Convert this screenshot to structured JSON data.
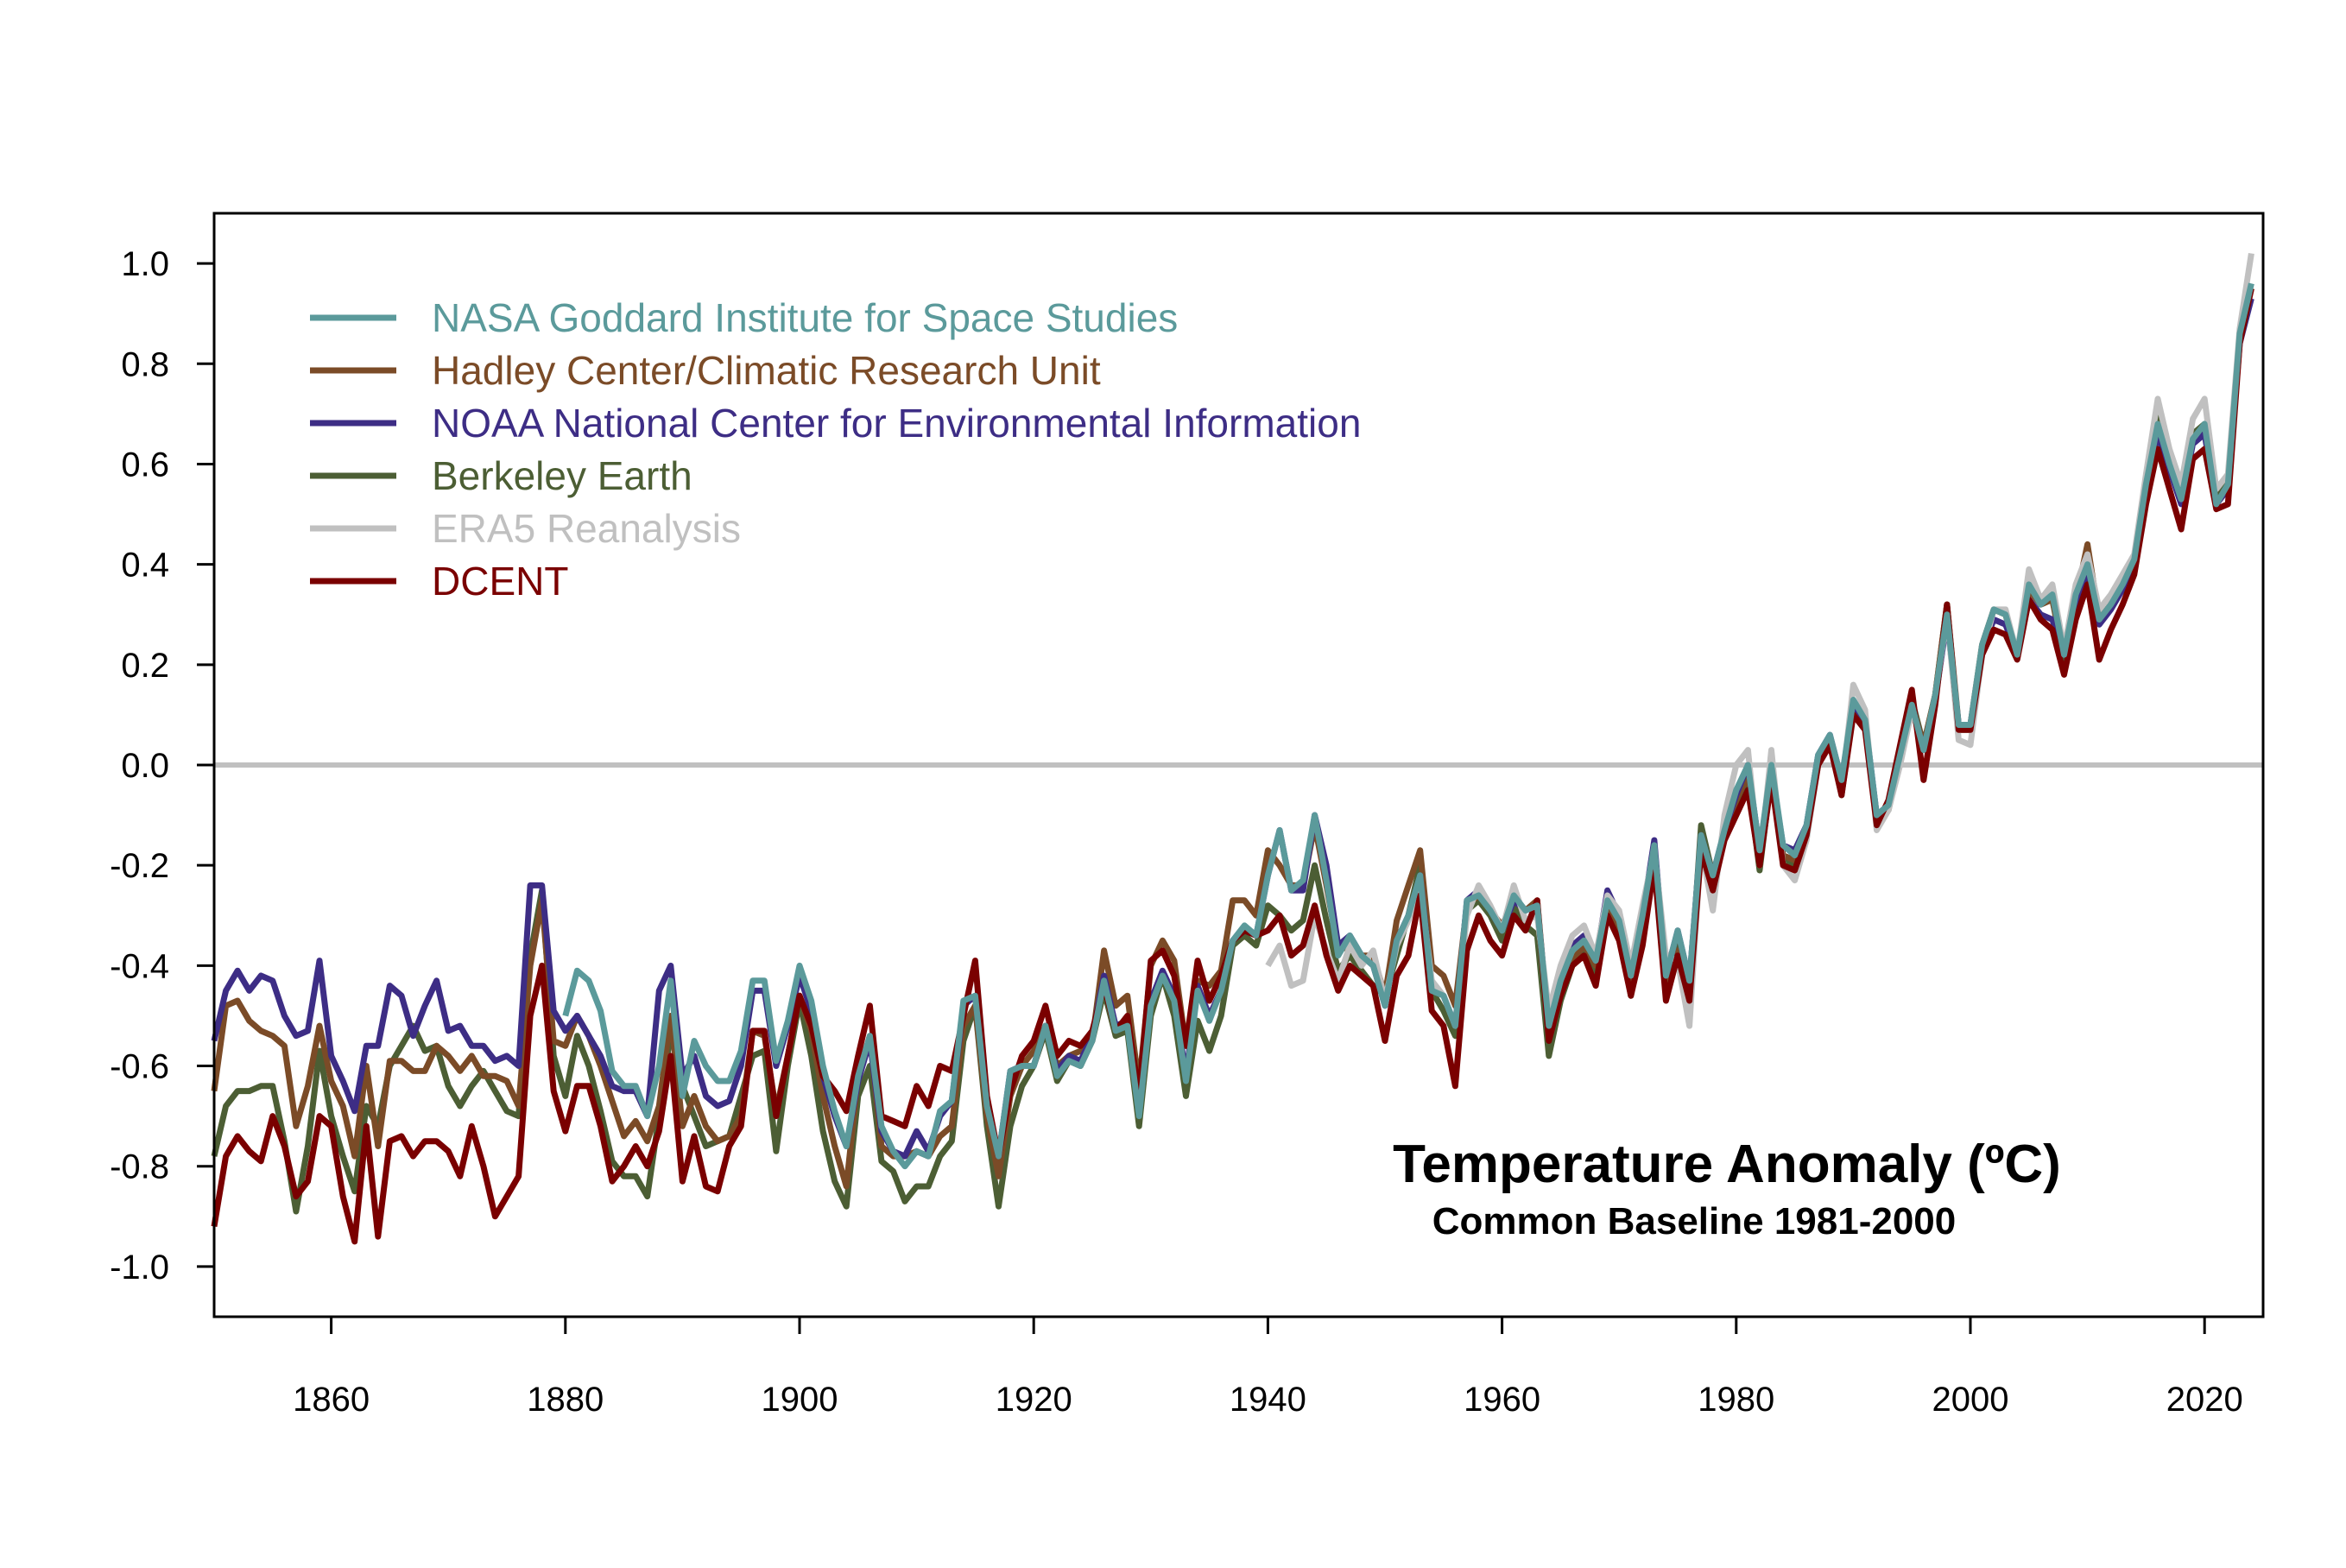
{
  "chart_data": {
    "type": "line",
    "title": "Temperature Anomaly (ºC)",
    "subtitle": "Common Baseline 1981-2000",
    "xlabel": "",
    "ylabel": "",
    "xlim": [
      1850,
      2025
    ],
    "ylim": [
      -1.1,
      1.1
    ],
    "x_ticks": [
      1860,
      1880,
      1900,
      1920,
      1940,
      1960,
      1980,
      2000,
      2020
    ],
    "y_ticks": [
      1.0,
      0.8,
      0.6,
      0.4,
      0.2,
      0.0,
      -0.2,
      -0.4,
      -0.6,
      -0.8,
      -1.0
    ],
    "y_tick_labels": [
      "1.0",
      "0.8",
      "0.6",
      "0.4",
      "0.2",
      "0.0",
      "-0.2",
      "-0.4",
      "-0.6",
      "-0.8",
      "-1.0"
    ],
    "grid": false,
    "reference_line": {
      "y": 0.0,
      "color": "#c0c0c0"
    },
    "legend_placement": "top-left",
    "series": [
      {
        "name": "NASA Goddard Institute for Space Studies",
        "color": "#5b9a9b",
        "start_year": 1880,
        "values": [
          -0.5,
          -0.41,
          -0.43,
          -0.49,
          -0.61,
          -0.64,
          -0.64,
          -0.7,
          -0.6,
          -0.43,
          -0.66,
          -0.55,
          -0.6,
          -0.63,
          -0.63,
          -0.57,
          -0.43,
          -0.43,
          -0.59,
          -0.51,
          -0.4,
          -0.47,
          -0.6,
          -0.69,
          -0.76,
          -0.62,
          -0.54,
          -0.72,
          -0.77,
          -0.8,
          -0.77,
          -0.78,
          -0.69,
          -0.67,
          -0.47,
          -0.46,
          -0.68,
          -0.78,
          -0.61,
          -0.6,
          -0.6,
          -0.52,
          -0.62,
          -0.59,
          -0.6,
          -0.55,
          -0.43,
          -0.53,
          -0.52,
          -0.7,
          -0.48,
          -0.42,
          -0.47,
          -0.63,
          -0.45,
          -0.51,
          -0.45,
          -0.35,
          -0.32,
          -0.34,
          -0.22,
          -0.13,
          -0.25,
          -0.23,
          -0.1,
          -0.23,
          -0.38,
          -0.34,
          -0.38,
          -0.4,
          -0.48,
          -0.35,
          -0.3,
          -0.22,
          -0.45,
          -0.46,
          -0.52,
          -0.27,
          -0.26,
          -0.29,
          -0.33,
          -0.26,
          -0.29,
          -0.28,
          -0.52,
          -0.43,
          -0.37,
          -0.35,
          -0.39,
          -0.27,
          -0.31,
          -0.42,
          -0.3,
          -0.16,
          -0.42,
          -0.33,
          -0.43,
          -0.14,
          -0.22,
          -0.13,
          -0.05,
          0.0,
          -0.17,
          0.0,
          -0.16,
          -0.18,
          -0.12,
          0.02,
          0.06,
          -0.03,
          0.13,
          0.09,
          -0.1,
          -0.08,
          0.02,
          0.12,
          0.03,
          0.14,
          0.3,
          0.08,
          0.08,
          0.24,
          0.31,
          0.3,
          0.22,
          0.36,
          0.32,
          0.34,
          0.22,
          0.34,
          0.4,
          0.29,
          0.32,
          0.36,
          0.41,
          0.56,
          0.68,
          0.6,
          0.53,
          0.65,
          0.68,
          0.52,
          0.56,
          0.86,
          0.96
        ]
      },
      {
        "name": "Hadley Center/Climatic Research Unit",
        "color": "#7b4b27",
        "start_year": 1850,
        "values": [
          -0.65,
          -0.48,
          -0.47,
          -0.51,
          -0.53,
          -0.54,
          -0.56,
          -0.72,
          -0.64,
          -0.52,
          -0.63,
          -0.68,
          -0.78,
          -0.6,
          -0.76,
          -0.59,
          -0.59,
          -0.61,
          -0.61,
          -0.56,
          -0.58,
          -0.61,
          -0.58,
          -0.62,
          -0.62,
          -0.63,
          -0.68,
          -0.4,
          -0.27,
          -0.55,
          -0.56,
          -0.5,
          -0.54,
          -0.6,
          -0.67,
          -0.74,
          -0.71,
          -0.75,
          -0.68,
          -0.5,
          -0.72,
          -0.66,
          -0.72,
          -0.75,
          -0.74,
          -0.7,
          -0.53,
          -0.54,
          -0.69,
          -0.58,
          -0.46,
          -0.53,
          -0.66,
          -0.76,
          -0.84,
          -0.62,
          -0.54,
          -0.76,
          -0.78,
          -0.78,
          -0.77,
          -0.78,
          -0.74,
          -0.72,
          -0.52,
          -0.48,
          -0.7,
          -0.82,
          -0.66,
          -0.6,
          -0.57,
          -0.52,
          -0.6,
          -0.58,
          -0.57,
          -0.55,
          -0.37,
          -0.48,
          -0.46,
          -0.64,
          -0.4,
          -0.35,
          -0.39,
          -0.56,
          -0.43,
          -0.44,
          -0.41,
          -0.27,
          -0.27,
          -0.3,
          -0.17,
          -0.2,
          -0.24,
          -0.24,
          -0.12,
          -0.24,
          -0.37,
          -0.36,
          -0.38,
          -0.38,
          -0.46,
          -0.31,
          -0.24,
          -0.17,
          -0.4,
          -0.42,
          -0.48,
          -0.28,
          -0.26,
          -0.29,
          -0.32,
          -0.27,
          -0.29,
          -0.27,
          -0.53,
          -0.44,
          -0.39,
          -0.36,
          -0.4,
          -0.29,
          -0.32,
          -0.44,
          -0.33,
          -0.18,
          -0.43,
          -0.37,
          -0.45,
          -0.14,
          -0.23,
          -0.14,
          -0.07,
          -0.02,
          -0.18,
          0.0,
          -0.18,
          -0.19,
          -0.13,
          0.01,
          0.05,
          -0.04,
          0.12,
          0.08,
          -0.11,
          -0.08,
          0.02,
          0.12,
          0.04,
          0.14,
          0.32,
          0.08,
          0.08,
          0.24,
          0.31,
          0.3,
          0.22,
          0.35,
          0.32,
          0.33,
          0.22,
          0.33,
          0.44,
          0.29,
          0.32,
          0.35,
          0.41,
          0.56,
          0.68,
          0.6,
          0.53,
          0.65,
          0.67,
          0.52,
          0.55,
          0.86,
          0.95
        ]
      },
      {
        "name": "NOAA National Center for Environmental Information",
        "color": "#3d2d85",
        "start_year": 1850,
        "values": [
          -0.55,
          -0.45,
          -0.41,
          -0.45,
          -0.42,
          -0.43,
          -0.5,
          -0.54,
          -0.53,
          -0.39,
          -0.58,
          -0.63,
          -0.69,
          -0.56,
          -0.56,
          -0.44,
          -0.46,
          -0.54,
          -0.48,
          -0.43,
          -0.53,
          -0.52,
          -0.56,
          -0.56,
          -0.59,
          -0.58,
          -0.6,
          -0.24,
          -0.24,
          -0.49,
          -0.53,
          -0.5,
          -0.54,
          -0.58,
          -0.64,
          -0.65,
          -0.65,
          -0.7,
          -0.45,
          -0.4,
          -0.62,
          -0.58,
          -0.66,
          -0.68,
          -0.67,
          -0.6,
          -0.45,
          -0.45,
          -0.6,
          -0.52,
          -0.42,
          -0.49,
          -0.62,
          -0.7,
          -0.76,
          -0.63,
          -0.55,
          -0.73,
          -0.77,
          -0.78,
          -0.73,
          -0.77,
          -0.7,
          -0.67,
          -0.48,
          -0.46,
          -0.67,
          -0.78,
          -0.61,
          -0.6,
          -0.6,
          -0.52,
          -0.61,
          -0.58,
          -0.59,
          -0.54,
          -0.42,
          -0.52,
          -0.51,
          -0.69,
          -0.47,
          -0.41,
          -0.46,
          -0.62,
          -0.44,
          -0.5,
          -0.45,
          -0.35,
          -0.33,
          -0.34,
          -0.22,
          -0.13,
          -0.25,
          -0.25,
          -0.1,
          -0.2,
          -0.36,
          -0.34,
          -0.38,
          -0.4,
          -0.48,
          -0.35,
          -0.3,
          -0.22,
          -0.44,
          -0.46,
          -0.52,
          -0.27,
          -0.25,
          -0.29,
          -0.33,
          -0.27,
          -0.29,
          -0.28,
          -0.52,
          -0.43,
          -0.36,
          -0.34,
          -0.39,
          -0.25,
          -0.3,
          -0.42,
          -0.3,
          -0.15,
          -0.42,
          -0.33,
          -0.43,
          -0.14,
          -0.22,
          -0.13,
          -0.06,
          0.0,
          -0.17,
          -0.01,
          -0.16,
          -0.17,
          -0.12,
          0.02,
          0.06,
          -0.03,
          0.12,
          0.09,
          -0.1,
          -0.08,
          0.02,
          0.12,
          0.03,
          0.13,
          0.29,
          0.08,
          0.08,
          0.23,
          0.29,
          0.28,
          0.22,
          0.33,
          0.3,
          0.29,
          0.22,
          0.32,
          0.38,
          0.28,
          0.31,
          0.35,
          0.4,
          0.55,
          0.66,
          0.59,
          0.52,
          0.64,
          0.66,
          0.52,
          0.55,
          0.84,
          0.93
        ]
      },
      {
        "name": "Berkeley Earth",
        "color": "#4c5e34",
        "start_year": 1850,
        "values": [
          -0.78,
          -0.68,
          -0.65,
          -0.65,
          -0.64,
          -0.64,
          -0.75,
          -0.89,
          -0.76,
          -0.57,
          -0.7,
          -0.78,
          -0.85,
          -0.68,
          -0.72,
          -0.6,
          -0.56,
          -0.52,
          -0.57,
          -0.56,
          -0.64,
          -0.68,
          -0.64,
          -0.61,
          -0.65,
          -0.69,
          -0.7,
          -0.38,
          -0.25,
          -0.58,
          -0.66,
          -0.54,
          -0.6,
          -0.69,
          -0.79,
          -0.82,
          -0.82,
          -0.86,
          -0.7,
          -0.53,
          -0.64,
          -0.7,
          -0.76,
          -0.75,
          -0.74,
          -0.66,
          -0.58,
          -0.57,
          -0.77,
          -0.6,
          -0.47,
          -0.58,
          -0.73,
          -0.83,
          -0.88,
          -0.66,
          -0.6,
          -0.79,
          -0.81,
          -0.87,
          -0.84,
          -0.84,
          -0.78,
          -0.75,
          -0.55,
          -0.48,
          -0.72,
          -0.88,
          -0.72,
          -0.64,
          -0.6,
          -0.53,
          -0.63,
          -0.59,
          -0.6,
          -0.55,
          -0.45,
          -0.54,
          -0.53,
          -0.72,
          -0.5,
          -0.42,
          -0.5,
          -0.66,
          -0.51,
          -0.57,
          -0.5,
          -0.36,
          -0.34,
          -0.36,
          -0.28,
          -0.3,
          -0.33,
          -0.31,
          -0.2,
          -0.31,
          -0.41,
          -0.38,
          -0.41,
          -0.44,
          -0.46,
          -0.38,
          -0.3,
          -0.2,
          -0.45,
          -0.49,
          -0.54,
          -0.29,
          -0.27,
          -0.3,
          -0.35,
          -0.28,
          -0.32,
          -0.34,
          -0.58,
          -0.47,
          -0.4,
          -0.37,
          -0.42,
          -0.29,
          -0.33,
          -0.46,
          -0.34,
          -0.18,
          -0.45,
          -0.36,
          -0.46,
          -0.12,
          -0.22,
          -0.14,
          -0.08,
          -0.03,
          -0.21,
          -0.02,
          -0.19,
          -0.2,
          -0.14,
          0.01,
          0.05,
          -0.06,
          0.11,
          0.08,
          -0.11,
          -0.09,
          0.01,
          0.13,
          0.04,
          0.14,
          0.32,
          0.07,
          0.07,
          0.23,
          0.31,
          0.3,
          0.22,
          0.36,
          0.32,
          0.33,
          0.21,
          0.34,
          0.42,
          0.29,
          0.32,
          0.37,
          0.41,
          0.57,
          0.7,
          0.61,
          0.54,
          0.66,
          0.68,
          0.53,
          0.57,
          0.86,
          0.95
        ]
      },
      {
        "name": "ERA5 Reanalysis",
        "color": "#c0c0c0",
        "start_year": 1940,
        "values": [
          -0.4,
          -0.36,
          -0.44,
          -0.43,
          -0.3,
          -0.37,
          -0.43,
          -0.36,
          -0.4,
          -0.37,
          -0.47,
          -0.36,
          -0.31,
          -0.24,
          -0.43,
          -0.46,
          -0.52,
          -0.3,
          -0.24,
          -0.28,
          -0.33,
          -0.24,
          -0.31,
          -0.3,
          -0.49,
          -0.4,
          -0.34,
          -0.32,
          -0.38,
          -0.26,
          -0.29,
          -0.4,
          -0.28,
          -0.17,
          -0.38,
          -0.39,
          -0.52,
          -0.16,
          -0.29,
          -0.1,
          0.0,
          0.03,
          -0.2,
          0.03,
          -0.2,
          -0.23,
          -0.15,
          0.0,
          0.05,
          -0.05,
          0.16,
          0.11,
          -0.13,
          -0.09,
          0.0,
          0.11,
          0.03,
          0.13,
          0.3,
          0.05,
          0.04,
          0.22,
          0.31,
          0.31,
          0.22,
          0.39,
          0.33,
          0.36,
          0.23,
          0.36,
          0.42,
          0.31,
          0.34,
          0.38,
          0.42,
          0.58,
          0.73,
          0.63,
          0.56,
          0.69,
          0.73,
          0.55,
          0.58,
          0.87,
          1.02
        ]
      },
      {
        "name": "DCENT",
        "color": "#7a0000",
        "start_year": 1850,
        "values": [
          -0.92,
          -0.78,
          -0.74,
          -0.77,
          -0.79,
          -0.7,
          -0.76,
          -0.86,
          -0.83,
          -0.7,
          -0.72,
          -0.86,
          -0.95,
          -0.72,
          -0.94,
          -0.75,
          -0.74,
          -0.78,
          -0.75,
          -0.75,
          -0.77,
          -0.82,
          -0.72,
          -0.8,
          -0.9,
          -0.86,
          -0.82,
          -0.5,
          -0.4,
          -0.65,
          -0.73,
          -0.64,
          -0.64,
          -0.72,
          -0.83,
          -0.8,
          -0.76,
          -0.8,
          -0.73,
          -0.58,
          -0.83,
          -0.74,
          -0.84,
          -0.85,
          -0.76,
          -0.72,
          -0.53,
          -0.53,
          -0.7,
          -0.58,
          -0.46,
          -0.52,
          -0.62,
          -0.65,
          -0.69,
          -0.58,
          -0.48,
          -0.7,
          -0.71,
          -0.72,
          -0.64,
          -0.68,
          -0.6,
          -0.61,
          -0.5,
          -0.39,
          -0.66,
          -0.78,
          -0.65,
          -0.58,
          -0.55,
          -0.48,
          -0.58,
          -0.55,
          -0.56,
          -0.53,
          -0.44,
          -0.53,
          -0.5,
          -0.66,
          -0.39,
          -0.37,
          -0.42,
          -0.56,
          -0.39,
          -0.47,
          -0.42,
          -0.35,
          -0.33,
          -0.34,
          -0.33,
          -0.3,
          -0.38,
          -0.36,
          -0.28,
          -0.38,
          -0.45,
          -0.4,
          -0.42,
          -0.44,
          -0.55,
          -0.42,
          -0.38,
          -0.26,
          -0.49,
          -0.52,
          -0.64,
          -0.37,
          -0.3,
          -0.35,
          -0.38,
          -0.3,
          -0.33,
          -0.27,
          -0.55,
          -0.46,
          -0.4,
          -0.38,
          -0.44,
          -0.3,
          -0.35,
          -0.46,
          -0.36,
          -0.2,
          -0.47,
          -0.38,
          -0.47,
          -0.17,
          -0.25,
          -0.15,
          -0.1,
          -0.05,
          -0.2,
          -0.03,
          -0.2,
          -0.21,
          -0.14,
          0.0,
          0.04,
          -0.06,
          0.1,
          0.07,
          -0.12,
          -0.07,
          0.04,
          0.15,
          -0.03,
          0.12,
          0.32,
          0.07,
          0.07,
          0.22,
          0.27,
          0.26,
          0.21,
          0.33,
          0.29,
          0.27,
          0.18,
          0.29,
          0.36,
          0.21,
          0.27,
          0.32,
          0.38,
          0.52,
          0.63,
          0.55,
          0.47,
          0.61,
          0.63,
          0.51,
          0.52,
          0.84,
          0.95
        ]
      }
    ]
  }
}
